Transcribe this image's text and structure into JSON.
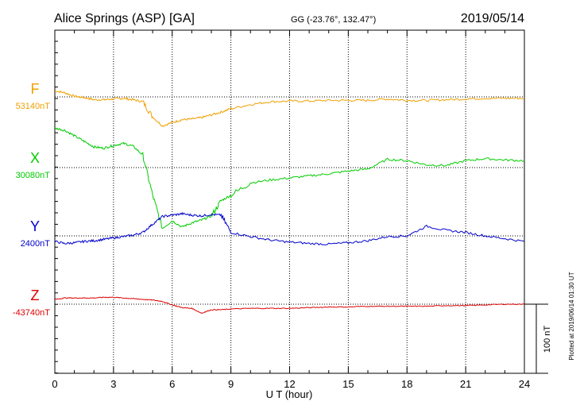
{
  "header": {
    "station": "Alice Springs (ASP)  [GA]",
    "coords": "GG (-23.76°, 132.47°)",
    "date": "2019/05/14"
  },
  "plotted_note": "Plotted at 2019/06/14 01:30 UT",
  "chart_data": {
    "type": "line",
    "xlabel": "U T (hour)",
    "xlim": [
      0,
      24
    ],
    "x_ticks": [
      "0",
      "3",
      "6",
      "9",
      "12",
      "15",
      "18",
      "21",
      "24"
    ],
    "scale_bar": "100 nT",
    "scale_bar_nT": 100,
    "series": [
      {
        "name": "F",
        "baseline_label": "53140nT",
        "color": "#f0a000",
        "x": [
          0,
          0.5,
          1,
          1.5,
          2,
          2.5,
          3,
          3.5,
          4,
          4.5,
          5,
          5.5,
          6,
          6.5,
          7,
          7.5,
          8,
          8.5,
          9,
          10,
          11,
          12,
          13,
          14,
          15,
          16,
          17,
          18,
          19,
          20,
          21,
          22,
          23,
          24
        ],
        "values": [
          9,
          6,
          1,
          -1,
          -4,
          -4,
          -3,
          -2,
          -4,
          -7,
          -29,
          -42,
          -37,
          -33,
          -32,
          -30,
          -26,
          -22,
          -17,
          -11,
          -7,
          -6,
          -6,
          -5,
          -5,
          -5,
          -3,
          -5,
          -5,
          -4,
          -3,
          -2,
          -2,
          -2
        ]
      },
      {
        "name": "X",
        "baseline_label": "30080nT",
        "color": "#00cc00",
        "x": [
          0,
          0.5,
          1,
          1.5,
          2,
          2.5,
          3,
          3.5,
          4,
          4.5,
          5,
          5.5,
          6,
          6.5,
          7,
          7.5,
          8,
          8.5,
          9,
          10,
          11,
          12,
          13,
          14,
          15,
          16,
          17,
          18,
          19,
          20,
          21,
          22,
          23,
          24
        ],
        "values": [
          57,
          54,
          46,
          38,
          30,
          28,
          32,
          35,
          31,
          18,
          -40,
          -88,
          -77,
          -86,
          -80,
          -76,
          -70,
          -48,
          -40,
          -22,
          -18,
          -15,
          -12,
          -9,
          -5,
          -2,
          12,
          10,
          4,
          3,
          10,
          13,
          11,
          10
        ]
      },
      {
        "name": "Y",
        "baseline_label": "2400nT",
        "color": "#0000cc",
        "x": [
          0,
          0.5,
          1,
          1.5,
          2,
          2.5,
          3,
          3.5,
          4,
          4.5,
          5,
          5.5,
          6,
          6.5,
          7,
          7.5,
          8,
          8.5,
          9,
          10,
          11,
          12,
          13,
          14,
          15,
          16,
          17,
          18,
          19,
          20,
          21,
          22,
          23,
          24
        ],
        "values": [
          -8,
          -11,
          -10,
          -8,
          -7,
          -5,
          -3,
          -1,
          1,
          5,
          17,
          28,
          30,
          32,
          30,
          29,
          31,
          30,
          5,
          -1,
          -6,
          -9,
          -11,
          -12,
          -10,
          -7,
          -1,
          0,
          14,
          8,
          5,
          0,
          -4,
          -8
        ]
      },
      {
        "name": "Z",
        "baseline_label": "-43740nT",
        "color": "#dd0000",
        "x": [
          0,
          0.5,
          1,
          1.5,
          2,
          2.5,
          3,
          3.5,
          4,
          4.5,
          5,
          5.5,
          6,
          6.5,
          7,
          7.5,
          8,
          8.5,
          9,
          10,
          11,
          12,
          13,
          14,
          15,
          16,
          17,
          18,
          19,
          20,
          21,
          22,
          23,
          24
        ],
        "values": [
          7,
          9,
          9,
          9,
          9,
          10,
          10,
          9,
          8,
          7,
          6,
          4,
          -1,
          -5,
          -6,
          -13,
          -8,
          -8,
          -7,
          -6,
          -6,
          -6,
          -5,
          -4,
          -4,
          -3,
          -3,
          -3,
          -3,
          -2,
          -2,
          -1,
          0,
          0
        ]
      }
    ]
  }
}
